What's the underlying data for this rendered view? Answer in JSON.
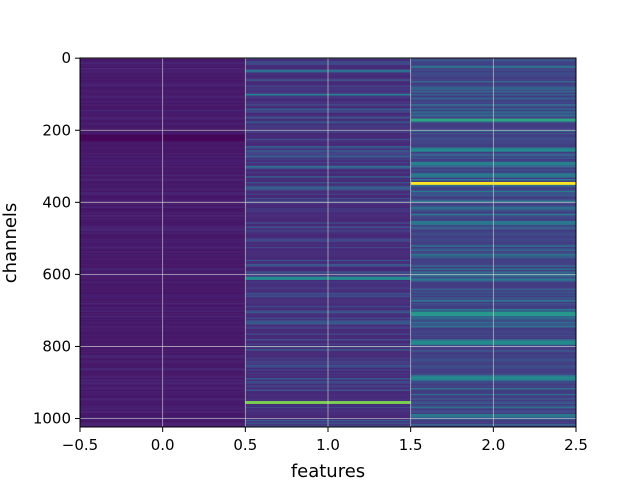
{
  "chart_data": {
    "type": "heatmap",
    "title": "",
    "xlabel": "features",
    "ylabel": "channels",
    "xlim": [
      -0.5,
      2.5
    ],
    "ylim": [
      1023.5,
      -0.5
    ],
    "x_ticks": [
      "−0.5",
      "0.0",
      "0.5",
      "1.0",
      "1.5",
      "2.0",
      "2.5"
    ],
    "y_ticks": [
      "0",
      "200",
      "400",
      "600",
      "800",
      "1000"
    ],
    "grid": true,
    "colormap": "viridis",
    "n_rows": 1024,
    "columns": [
      {
        "feature": 0,
        "base": 0.08,
        "variance": 0.06,
        "bands": [
          [
            215,
            230,
            0.0
          ]
        ]
      },
      {
        "feature": 1,
        "base": 0.15,
        "variance": 0.22,
        "bands": [
          [
            35,
            38,
            0.45
          ],
          [
            100,
            102,
            0.55
          ],
          [
            300,
            303,
            0.45
          ],
          [
            360,
            362,
            0.4
          ],
          [
            608,
            612,
            0.6
          ],
          [
            955,
            958,
            0.85
          ]
        ]
      },
      {
        "feature": 2,
        "base": 0.22,
        "variance": 0.32,
        "bands": [
          [
            170,
            172,
            0.7
          ],
          [
            255,
            258,
            0.6
          ],
          [
            290,
            293,
            0.55
          ],
          [
            347,
            351,
            1.0
          ],
          [
            455,
            457,
            0.5
          ],
          [
            600,
            603,
            0.55
          ],
          [
            705,
            713,
            0.65
          ],
          [
            785,
            795,
            0.6
          ],
          [
            885,
            888,
            0.6
          ],
          [
            990,
            992,
            0.5
          ]
        ]
      }
    ]
  },
  "colors": {
    "grid": "#cfcfcf",
    "axes": "#000000",
    "background": "#ffffff"
  }
}
